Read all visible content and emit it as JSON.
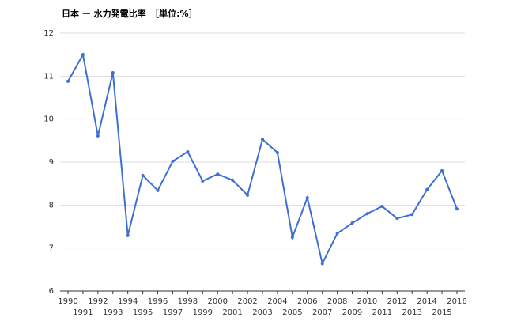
{
  "chart_data": {
    "type": "line",
    "title": "日本 ー 水力発電比率　［単位:%］",
    "x": [
      1990,
      1991,
      1992,
      1993,
      1994,
      1995,
      1996,
      1997,
      1998,
      1999,
      2000,
      2001,
      2002,
      2003,
      2004,
      2005,
      2006,
      2007,
      2008,
      2009,
      2010,
      2011,
      2012,
      2013,
      2014,
      2015,
      2016
    ],
    "series": [
      {
        "name": "水力発電比率",
        "color": "#3f6fd0",
        "values": [
          10.88,
          11.5,
          9.61,
          11.08,
          7.29,
          8.69,
          8.34,
          9.02,
          9.24,
          8.56,
          8.72,
          8.58,
          8.23,
          9.53,
          9.22,
          7.25,
          8.17,
          6.64,
          7.34,
          7.58,
          7.8,
          7.97,
          7.69,
          7.78,
          8.36,
          8.8,
          7.91
        ]
      }
    ],
    "xlim": [
      1990,
      2016
    ],
    "xticks": [
      1990,
      1991,
      1992,
      1993,
      1994,
      1995,
      1996,
      1997,
      1998,
      1999,
      2000,
      2001,
      2002,
      2003,
      2004,
      2005,
      2006,
      2007,
      2008,
      2009,
      2010,
      2011,
      2012,
      2013,
      2014,
      2015,
      2016
    ],
    "ylim": [
      6,
      12
    ],
    "yticks": [
      6,
      7,
      8,
      9,
      10,
      11,
      12
    ],
    "grid": true
  }
}
